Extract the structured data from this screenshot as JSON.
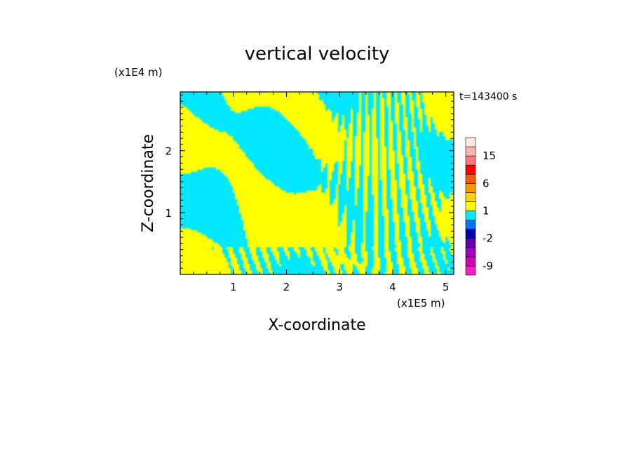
{
  "chart_data": {
    "type": "heatmap",
    "title": "vertical velocity",
    "xlabel": "X-coordinate",
    "ylabel": "Z-coordinate",
    "x_scale_label": "(x1E5 m)",
    "y_scale_label": "(x1E4 m)",
    "time_label": "t=143400 s",
    "xlim": [
      0,
      5.15
    ],
    "ylim": [
      0,
      2.95
    ],
    "x_ticks": [
      {
        "value": 1,
        "label": "1"
      },
      {
        "value": 2,
        "label": "2"
      },
      {
        "value": 3,
        "label": "3"
      },
      {
        "value": 4,
        "label": "4"
      },
      {
        "value": 5,
        "label": "5"
      }
    ],
    "y_ticks": [
      {
        "value": 1,
        "label": "1"
      },
      {
        "value": 2,
        "label": "2"
      }
    ],
    "field_colors": {
      "positive": "#ffff00",
      "negative": "#00e8ff"
    },
    "colorbar": {
      "levels": [
        -12,
        -9,
        -6,
        -4,
        -2,
        -1,
        0,
        1,
        2,
        4,
        6,
        9,
        12,
        15,
        20
      ],
      "colors": [
        "#ff1cc0",
        "#d000b4",
        "#a000c0",
        "#6000b0",
        "#0000b0",
        "#0070ff",
        "#00e8ff",
        "#ffff00",
        "#ffd200",
        "#ff9600",
        "#ff5a00",
        "#ff0000",
        "#ff7878",
        "#ffb4b4",
        "#ffe6e6"
      ],
      "labels": [
        {
          "value": 15,
          "label": "15"
        },
        {
          "value": 6,
          "label": "6"
        },
        {
          "value": 1,
          "label": "1"
        },
        {
          "value": -2,
          "label": "-2"
        },
        {
          "value": -9,
          "label": "-9"
        }
      ]
    }
  }
}
